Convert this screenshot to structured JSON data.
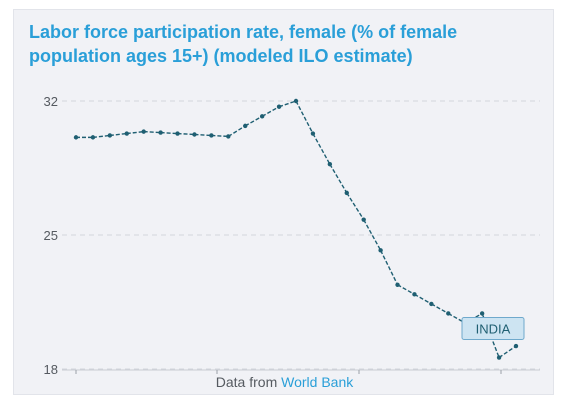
{
  "chart": {
    "title": "Labor force participation rate, female (% of female population ages 15+) (modeled ILO estimate)",
    "source_prefix": "Data from ",
    "source_name": "World Bank"
  },
  "colors": {
    "title": "#2a9fd8",
    "line": "#1f5f72",
    "grid": "#d3d6dc",
    "tooltip_bg": "#cde4f2",
    "tooltip_border": "#6fa9cc",
    "tooltip_text": "#1f5f72"
  },
  "chart_data": {
    "type": "line",
    "title": "Labor force participation rate, female (% of female population ages 15+) (modeled ILO estimate)",
    "xlabel": "",
    "ylabel": "",
    "y_ticks": [
      18,
      25,
      32
    ],
    "ylim": [
      18,
      32
    ],
    "grid": true,
    "series": [
      {
        "name": "INDIA",
        "values": [
          30.1,
          30.1,
          30.2,
          30.3,
          30.4,
          30.35,
          30.3,
          30.25,
          30.2,
          30.15,
          30.7,
          31.2,
          31.7,
          32.0,
          30.3,
          28.7,
          27.2,
          25.8,
          24.2,
          22.4,
          21.9,
          21.4,
          20.9,
          20.4,
          20.9,
          18.6,
          19.2
        ]
      }
    ],
    "tooltip": {
      "label": "INDIA",
      "point_index": 24
    }
  }
}
